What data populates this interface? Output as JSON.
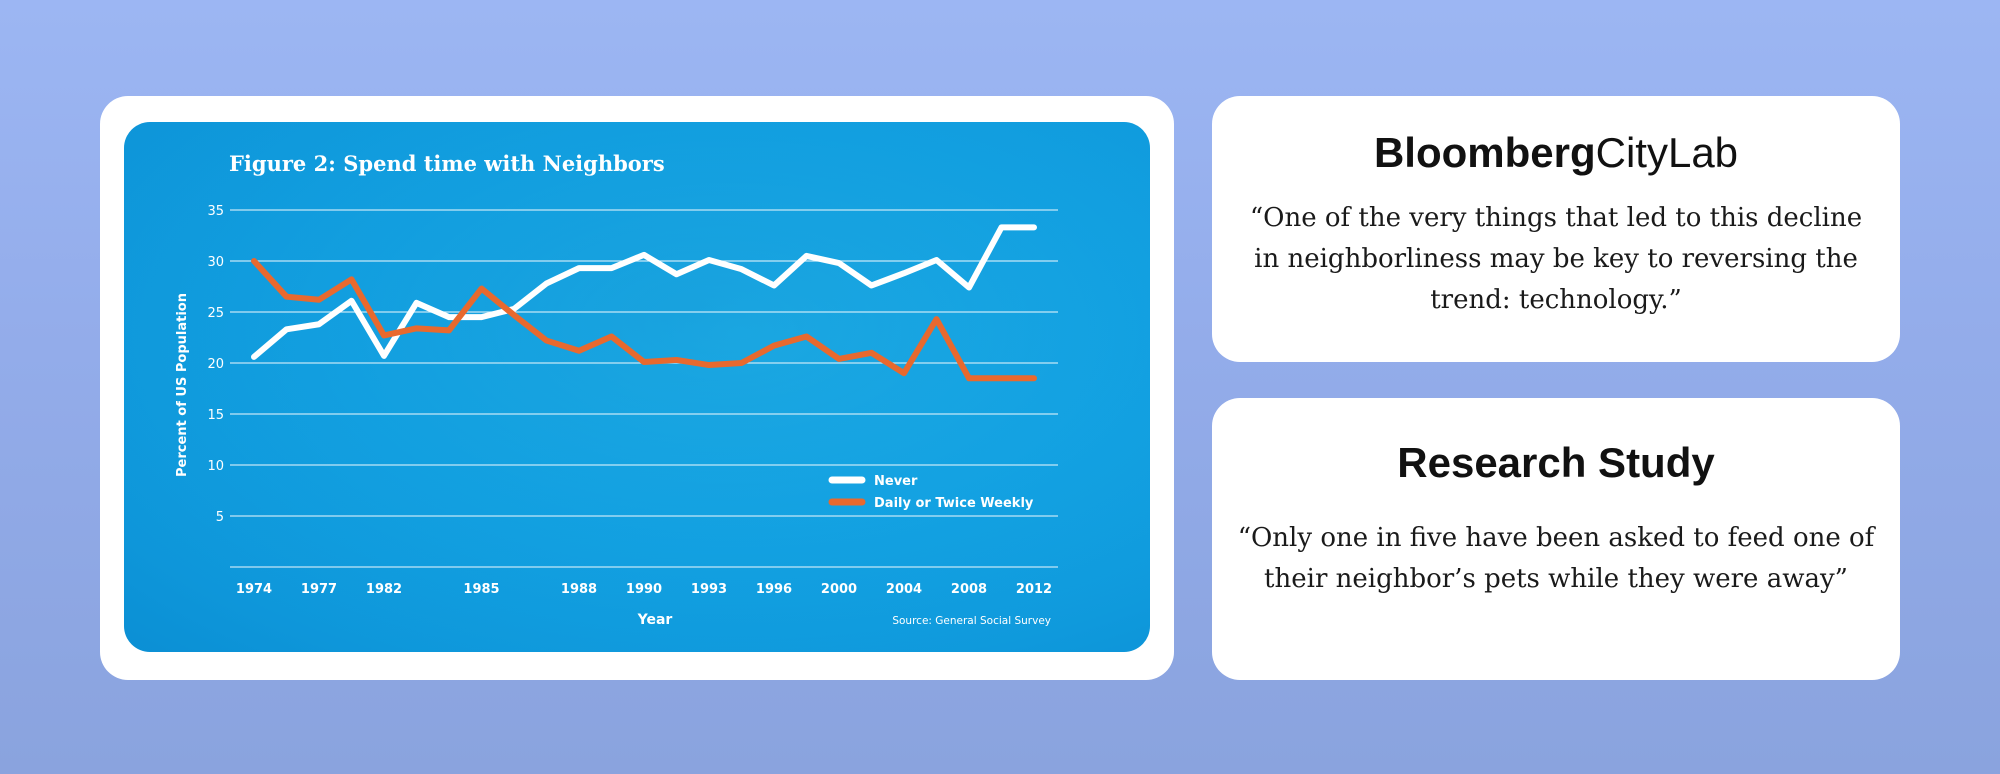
{
  "chart_card": {
    "title": "Figure 2: Spend time with Neighbors",
    "source": "Source: General Social Survey"
  },
  "colors": {
    "series_never": "#ffffff",
    "series_daily": "#e8692e",
    "panel_blue": "#14a6e6",
    "page_bg": "#97b0ee"
  },
  "chart_data": {
    "type": "line",
    "title": "Figure 2: Spend time with Neighbors",
    "xlabel": "Year",
    "ylabel": "Percent of US Population",
    "ylim": [
      0,
      35
    ],
    "yticks": [
      5,
      10,
      15,
      20,
      25,
      30,
      35
    ],
    "xtick_labels": [
      "1974",
      "1977",
      "1982",
      "1985",
      "1988",
      "1990",
      "1993",
      "1996",
      "2000",
      "2004",
      "2008",
      "2012"
    ],
    "grid": true,
    "legend_position": "bottom-right",
    "x": [
      "1974",
      "1975",
      "1977",
      "1978",
      "1982",
      "1983",
      "1984",
      "1985",
      "1986",
      "1987",
      "1988",
      "1989",
      "1990",
      "1991",
      "1993",
      "1994",
      "1996",
      "1998",
      "2000",
      "2002",
      "2004",
      "2006",
      "2008",
      "2010",
      "2012"
    ],
    "series": [
      {
        "name": "Never",
        "color": "#ffffff",
        "values": [
          20.6,
          23.3,
          23.8,
          26.1,
          20.7,
          25.9,
          24.5,
          24.5,
          25.3,
          27.8,
          29.3,
          29.3,
          30.6,
          28.7,
          30.1,
          29.2,
          27.6,
          30.5,
          29.8,
          27.6,
          28.8,
          30.1,
          27.4,
          33.3,
          33.3
        ]
      },
      {
        "name": "Daily or Twice Weekly",
        "color": "#e8692e",
        "values": [
          30.0,
          26.5,
          26.2,
          28.2,
          22.7,
          23.4,
          23.2,
          27.3,
          24.7,
          22.2,
          21.2,
          22.6,
          20.1,
          20.3,
          19.8,
          20.0,
          21.7,
          22.6,
          20.4,
          21.0,
          19.0,
          24.3,
          18.5,
          18.5,
          18.5
        ]
      }
    ]
  },
  "card_top": {
    "brand_bold": "Bloomberg",
    "brand_light": "CityLab",
    "quote": "“One of the very things that led to this decline in neighborliness may be key to reversing the trend: technology.”"
  },
  "card_bottom": {
    "title": "Research Study",
    "quote": "“Only one in five have been asked to feed one of their neighbor’s pets while they were away”"
  }
}
